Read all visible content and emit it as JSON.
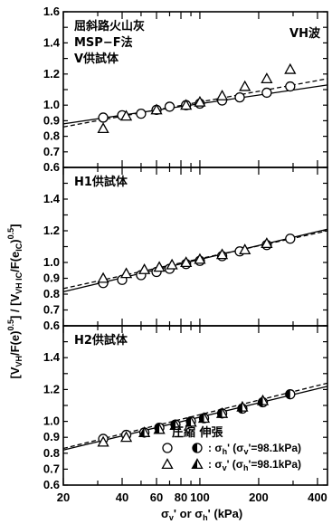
{
  "chart_data": {
    "type": "scatter",
    "x_scale": "log",
    "xlim": [
      20,
      450
    ],
    "ylim": [
      0.6,
      1.6
    ],
    "y_ticks": [
      0.6,
      0.7,
      0.8,
      0.9,
      1.0,
      1.2,
      1.4
    ],
    "y_tick_labels": [
      "0.6",
      "0.7",
      "0.8",
      "0.9",
      "1.0",
      "1.2",
      "1.4"
    ],
    "top_y_tick_labels": [
      "0.6",
      "0.7",
      "0.8",
      "0.9",
      "1.0",
      "1.2",
      "1.4",
      "1.6"
    ],
    "x_ticks": [
      20,
      40,
      60,
      80,
      100,
      200,
      400
    ],
    "x_tick_labels": [
      "20",
      "40",
      "60",
      "80",
      "100",
      "200",
      "400"
    ],
    "xlabel_parts": {
      "sigma_v": "σ",
      "v_sub": "v",
      "or": "' or ",
      "sigma_h": "σ",
      "h_sub": "h",
      "unit": "'  (kPa)"
    },
    "ylabel": "[V",
    "ylabel_parts": [
      "[V",
      "VH",
      "/F(e)",
      "0.5",
      "] / [V",
      "VH IC",
      "/F(e",
      "IC",
      ")",
      "0.5",
      "]"
    ],
    "panels": [
      {
        "texts": [
          "屈斜路火山灰",
          "MSP−F法",
          "V供試体"
        ],
        "annotation": "VH波",
        "series": [
          {
            "marker": "circle-open",
            "x": [
              32,
              40,
              50,
              60,
              70,
              85,
              100,
              130,
              160,
              220,
              290
            ],
            "y": [
              0.92,
              0.935,
              0.945,
              0.97,
              0.99,
              1.0,
              1.01,
              1.03,
              1.05,
              1.08,
              1.12
            ]
          },
          {
            "marker": "triangle-open",
            "x": [
              32,
              42,
              60,
              85,
              100,
              130,
              170,
              220,
              290
            ],
            "y": [
              0.85,
              0.93,
              0.97,
              1.0,
              1.02,
              1.06,
              1.12,
              1.17,
              1.23
            ]
          }
        ],
        "fit_lines": [
          {
            "style": "solid",
            "x": [
              20,
              450
            ],
            "y": [
              0.88,
              1.13
            ]
          },
          {
            "style": "dashed",
            "x": [
              20,
              450
            ],
            "y": [
              0.86,
              1.17
            ]
          }
        ]
      },
      {
        "texts": [
          "H1供試体"
        ],
        "series": [
          {
            "marker": "circle-open",
            "x": [
              32,
              40,
              50,
              60,
              70,
              85,
              100,
              130,
              160,
              220,
              290
            ],
            "y": [
              0.87,
              0.89,
              0.92,
              0.94,
              0.96,
              0.99,
              1.01,
              1.04,
              1.07,
              1.11,
              1.15
            ]
          },
          {
            "marker": "triangle-open",
            "x": [
              32,
              42,
              52,
              62,
              72,
              85,
              100,
              130,
              170,
              220
            ],
            "y": [
              0.9,
              0.93,
              0.955,
              0.97,
              0.985,
              1.0,
              1.02,
              1.05,
              1.08,
              1.12
            ]
          }
        ],
        "fit_lines": [
          {
            "style": "solid",
            "x": [
              20,
              450
            ],
            "y": [
              0.815,
              1.21
            ]
          },
          {
            "style": "dashed",
            "x": [
              20,
              450
            ],
            "y": [
              0.835,
              1.2
            ]
          }
        ]
      },
      {
        "texts": [
          "H2供試体"
        ],
        "series": [
          {
            "marker": "circle-open",
            "x": [
              32,
              42,
              52
            ],
            "y": [
              0.89,
              0.915,
              0.93
            ]
          },
          {
            "marker": "circle-half",
            "x": [
              62,
              75,
              90,
              105,
              130,
              165,
              210,
              290
            ],
            "y": [
              0.96,
              0.98,
              1.0,
              1.02,
              1.05,
              1.08,
              1.12,
              1.17
            ]
          },
          {
            "marker": "triangle-open",
            "x": [
              32,
              42
            ],
            "y": [
              0.87,
              0.9
            ]
          },
          {
            "marker": "triangle-half",
            "x": [
              52,
              62,
              75,
              90,
              105,
              130,
              165,
              210
            ],
            "y": [
              0.93,
              0.95,
              0.975,
              0.995,
              1.02,
              1.05,
              1.09,
              1.13
            ]
          }
        ],
        "fit_lines": [
          {
            "style": "solid",
            "x": [
              20,
              450
            ],
            "y": [
              0.82,
              1.22
            ]
          },
          {
            "style": "dashed",
            "x": [
              20,
              450
            ],
            "y": [
              0.83,
              1.24
            ]
          }
        ],
        "legend": {
          "header": "圧縮 伸張",
          "rows": [
            {
              "open": "circle-open",
              "filled": "circle-half",
              "sym": "σ",
              "sub": "h",
              "rest": "' (σ",
              "sub2": "v",
              "tail": "'=98.1kPa)"
            },
            {
              "open": "triangle-open",
              "filled": "triangle-half",
              "sym": "σ",
              "sub": "v",
              "rest": "' (σ",
              "sub2": "h",
              "tail": "'=98.1kPa)"
            }
          ]
        }
      }
    ]
  }
}
